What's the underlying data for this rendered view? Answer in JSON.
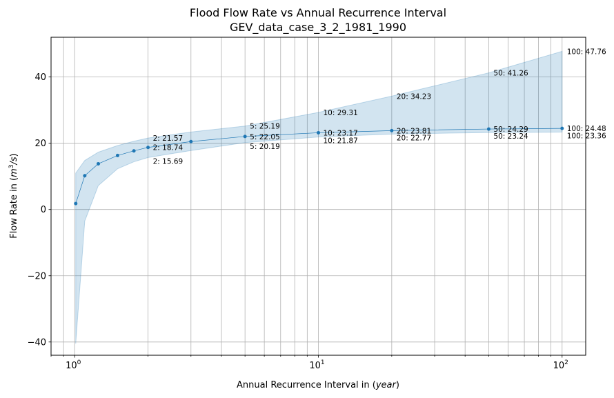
{
  "chart_data": {
    "type": "line",
    "title_line1": "Flood Flow Rate vs Annual Recurrence Interval",
    "title_line2": "GEV_data_case_3_2_1981_1990",
    "xlabel_main": "Annual Recurrence Interval in (",
    "xlabel_italic": "year",
    "xlabel_end": ")",
    "ylabel_main": "Flow Rate in (",
    "ylabel_italic": "m",
    "ylabel_sup": "3",
    "ylabel_italic2": "/s",
    "ylabel_end": ")",
    "xscale": "log",
    "xlim": [
      0.8,
      125
    ],
    "ylim": [
      -44,
      52
    ],
    "grid": true,
    "x_ticks": [
      {
        "value": 1,
        "base": "10",
        "exp": "0"
      },
      {
        "value": 10,
        "base": "10",
        "exp": "1"
      },
      {
        "value": 100,
        "base": "10",
        "exp": "2"
      }
    ],
    "y_ticks": [
      {
        "value": -40,
        "label": "−40"
      },
      {
        "value": -20,
        "label": "−20"
      },
      {
        "value": 0,
        "label": "0"
      },
      {
        "value": 20,
        "label": "20"
      },
      {
        "value": 40,
        "label": "40"
      }
    ],
    "colors": {
      "line": "#1f77b4",
      "band": "#1f77b4",
      "grid": "#b0b0b0"
    },
    "x": [
      1.01,
      1.1,
      1.25,
      1.5,
      1.75,
      2,
      3,
      5,
      10,
      20,
      50,
      100
    ],
    "series": [
      {
        "values": [
          1.8,
          10.2,
          13.8,
          16.3,
          17.7,
          18.74,
          20.5,
          22.05,
          23.17,
          23.81,
          24.29,
          24.48
        ]
      }
    ],
    "band_upper": [
      11.0,
      14.8,
      17.3,
      19.3,
      20.6,
      21.57,
      23.4,
      25.19,
      29.31,
      34.23,
      41.26,
      47.76
    ],
    "band_lower": [
      -40.5,
      -3.5,
      7.2,
      12.3,
      14.4,
      15.69,
      17.8,
      20.19,
      21.87,
      22.77,
      23.24,
      23.36
    ],
    "annotations": {
      "mid": [
        {
          "x": 2,
          "y": 18.74,
          "label": "2: 18.74"
        },
        {
          "x": 5,
          "y": 22.05,
          "label": "5: 22.05"
        },
        {
          "x": 10,
          "y": 23.17,
          "label": "10: 23.17"
        },
        {
          "x": 20,
          "y": 23.81,
          "label": "20: 23.81"
        },
        {
          "x": 50,
          "y": 24.29,
          "label": "50: 24.29"
        },
        {
          "x": 100,
          "y": 24.48,
          "label": "100: 24.48"
        }
      ],
      "upper": [
        {
          "x": 2,
          "y": 21.57,
          "label": "2: 21.57"
        },
        {
          "x": 5,
          "y": 25.19,
          "label": "5: 25.19"
        },
        {
          "x": 10,
          "y": 29.31,
          "label": "10: 29.31"
        },
        {
          "x": 20,
          "y": 34.23,
          "label": "20: 34.23"
        },
        {
          "x": 50,
          "y": 41.26,
          "label": "50: 41.26"
        },
        {
          "x": 100,
          "y": 47.76,
          "label": "100: 47.76"
        }
      ],
      "lower": [
        {
          "x": 2,
          "y": 15.69,
          "label": "2: 15.69"
        },
        {
          "x": 5,
          "y": 20.19,
          "label": "5: 20.19"
        },
        {
          "x": 10,
          "y": 21.87,
          "label": "10: 21.87"
        },
        {
          "x": 20,
          "y": 22.77,
          "label": "20: 22.77"
        },
        {
          "x": 50,
          "y": 23.24,
          "label": "50: 23.24"
        },
        {
          "x": 100,
          "y": 23.36,
          "label": "100: 23.36"
        }
      ]
    }
  }
}
